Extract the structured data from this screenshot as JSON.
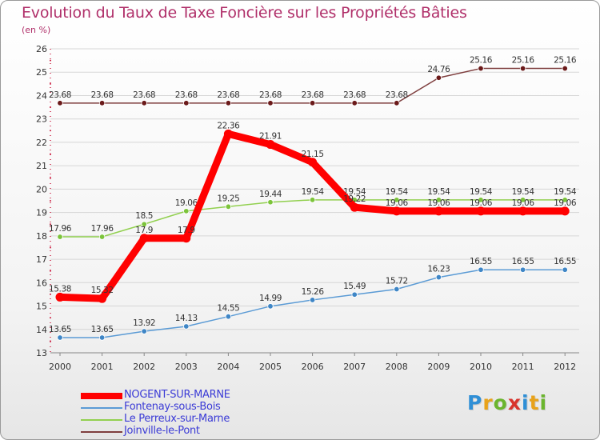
{
  "title": "Evolution du Taux de Taxe Foncière sur les Propriétés Bâties",
  "subtitle": "(en %)",
  "logo_text": "Proxiti",
  "logo_letters": [
    {
      "ch": "P",
      "color": "#2f8fd6"
    },
    {
      "ch": "r",
      "color": "#e8a21a"
    },
    {
      "ch": "o",
      "color": "#6bb52e"
    },
    {
      "ch": "x",
      "color": "#d8342c"
    },
    {
      "ch": "i",
      "color": "#2f8fd6"
    },
    {
      "ch": "t",
      "color": "#e8a21a"
    },
    {
      "ch": "i",
      "color": "#6bb52e"
    }
  ],
  "legend": [
    {
      "label": "NOGENT-SUR-MARNE",
      "color": "#ff0000",
      "weight": "thick"
    },
    {
      "label": "Fontenay-sous-Bois",
      "color": "#5b9bd5",
      "weight": "thin"
    },
    {
      "label": "Le Perreux-sur-Marne",
      "color": "#92d050",
      "weight": "thin"
    },
    {
      "label": "Joinville-le-Pont",
      "color": "#7f3f3f",
      "weight": "thin"
    }
  ],
  "chart_data": {
    "type": "line",
    "title": "Evolution du Taux de Taxe Foncière sur les Propriétés Bâties",
    "ylabel": "(en %)",
    "xlabel": "",
    "x": [
      "2000",
      "2001",
      "2002",
      "2003",
      "2004",
      "2005",
      "2006",
      "2007",
      "2008",
      "2009",
      "2010",
      "2011",
      "2012"
    ],
    "ylim": [
      13,
      26
    ],
    "yticks": [
      "13",
      "14",
      "15",
      "16",
      "17",
      "18",
      "19",
      "20",
      "21",
      "22",
      "23",
      "24",
      "25",
      "26"
    ],
    "series": [
      {
        "name": "Joinville-le-Pont",
        "color": "#7f3f3f",
        "marker": "#6b1a1a",
        "values": [
          23.68,
          23.68,
          23.68,
          23.68,
          23.68,
          23.68,
          23.68,
          23.68,
          23.68,
          24.76,
          25.16,
          25.16,
          25.16
        ],
        "labels": [
          "23.68",
          "23.68",
          "23.68",
          "23.68",
          "23.68",
          "23.68",
          "23.68",
          "23.68",
          "23.68",
          "24.76",
          "25.16",
          "25.16",
          "25.16"
        ]
      },
      {
        "name": "Le Perreux-sur-Marne",
        "color": "#92d050",
        "marker": "#7cc43b",
        "values": [
          17.96,
          17.96,
          18.5,
          19.06,
          19.25,
          19.44,
          19.54,
          19.54,
          19.54,
          19.54,
          19.54,
          19.54,
          19.54
        ],
        "labels": [
          "17.96",
          "17.96",
          "18.5",
          "19.06",
          "19.25",
          "19.44",
          "19.54",
          "19.54",
          "19.54",
          "19.54",
          "19.54",
          "19.54",
          "19.54"
        ]
      },
      {
        "name": "Fontenay-sous-Bois",
        "color": "#5b9bd5",
        "marker": "#3f86c6",
        "values": [
          13.65,
          13.65,
          13.92,
          14.13,
          14.55,
          14.99,
          15.26,
          15.49,
          15.72,
          16.23,
          16.55,
          16.55,
          16.55
        ],
        "labels": [
          "13.65",
          "13.65",
          "13.92",
          "14.13",
          "14.55",
          "14.99",
          "15.26",
          "15.49",
          "15.72",
          "16.23",
          "16.55",
          "16.55",
          "16.55"
        ]
      },
      {
        "name": "NOGENT-SUR-MARNE",
        "color": "#ff0000",
        "marker": "#ff0000",
        "values": [
          15.38,
          15.32,
          17.9,
          17.9,
          22.36,
          21.91,
          21.15,
          19.22,
          19.06,
          19.06,
          19.06,
          19.06,
          19.06
        ],
        "labels": [
          "15.38",
          "15.32",
          "17.9",
          "17.9",
          "22.36",
          "21.91",
          "21.15",
          "19.22",
          "19.06",
          "19.06",
          "19.06",
          "19.06",
          "19.06"
        ]
      }
    ]
  }
}
